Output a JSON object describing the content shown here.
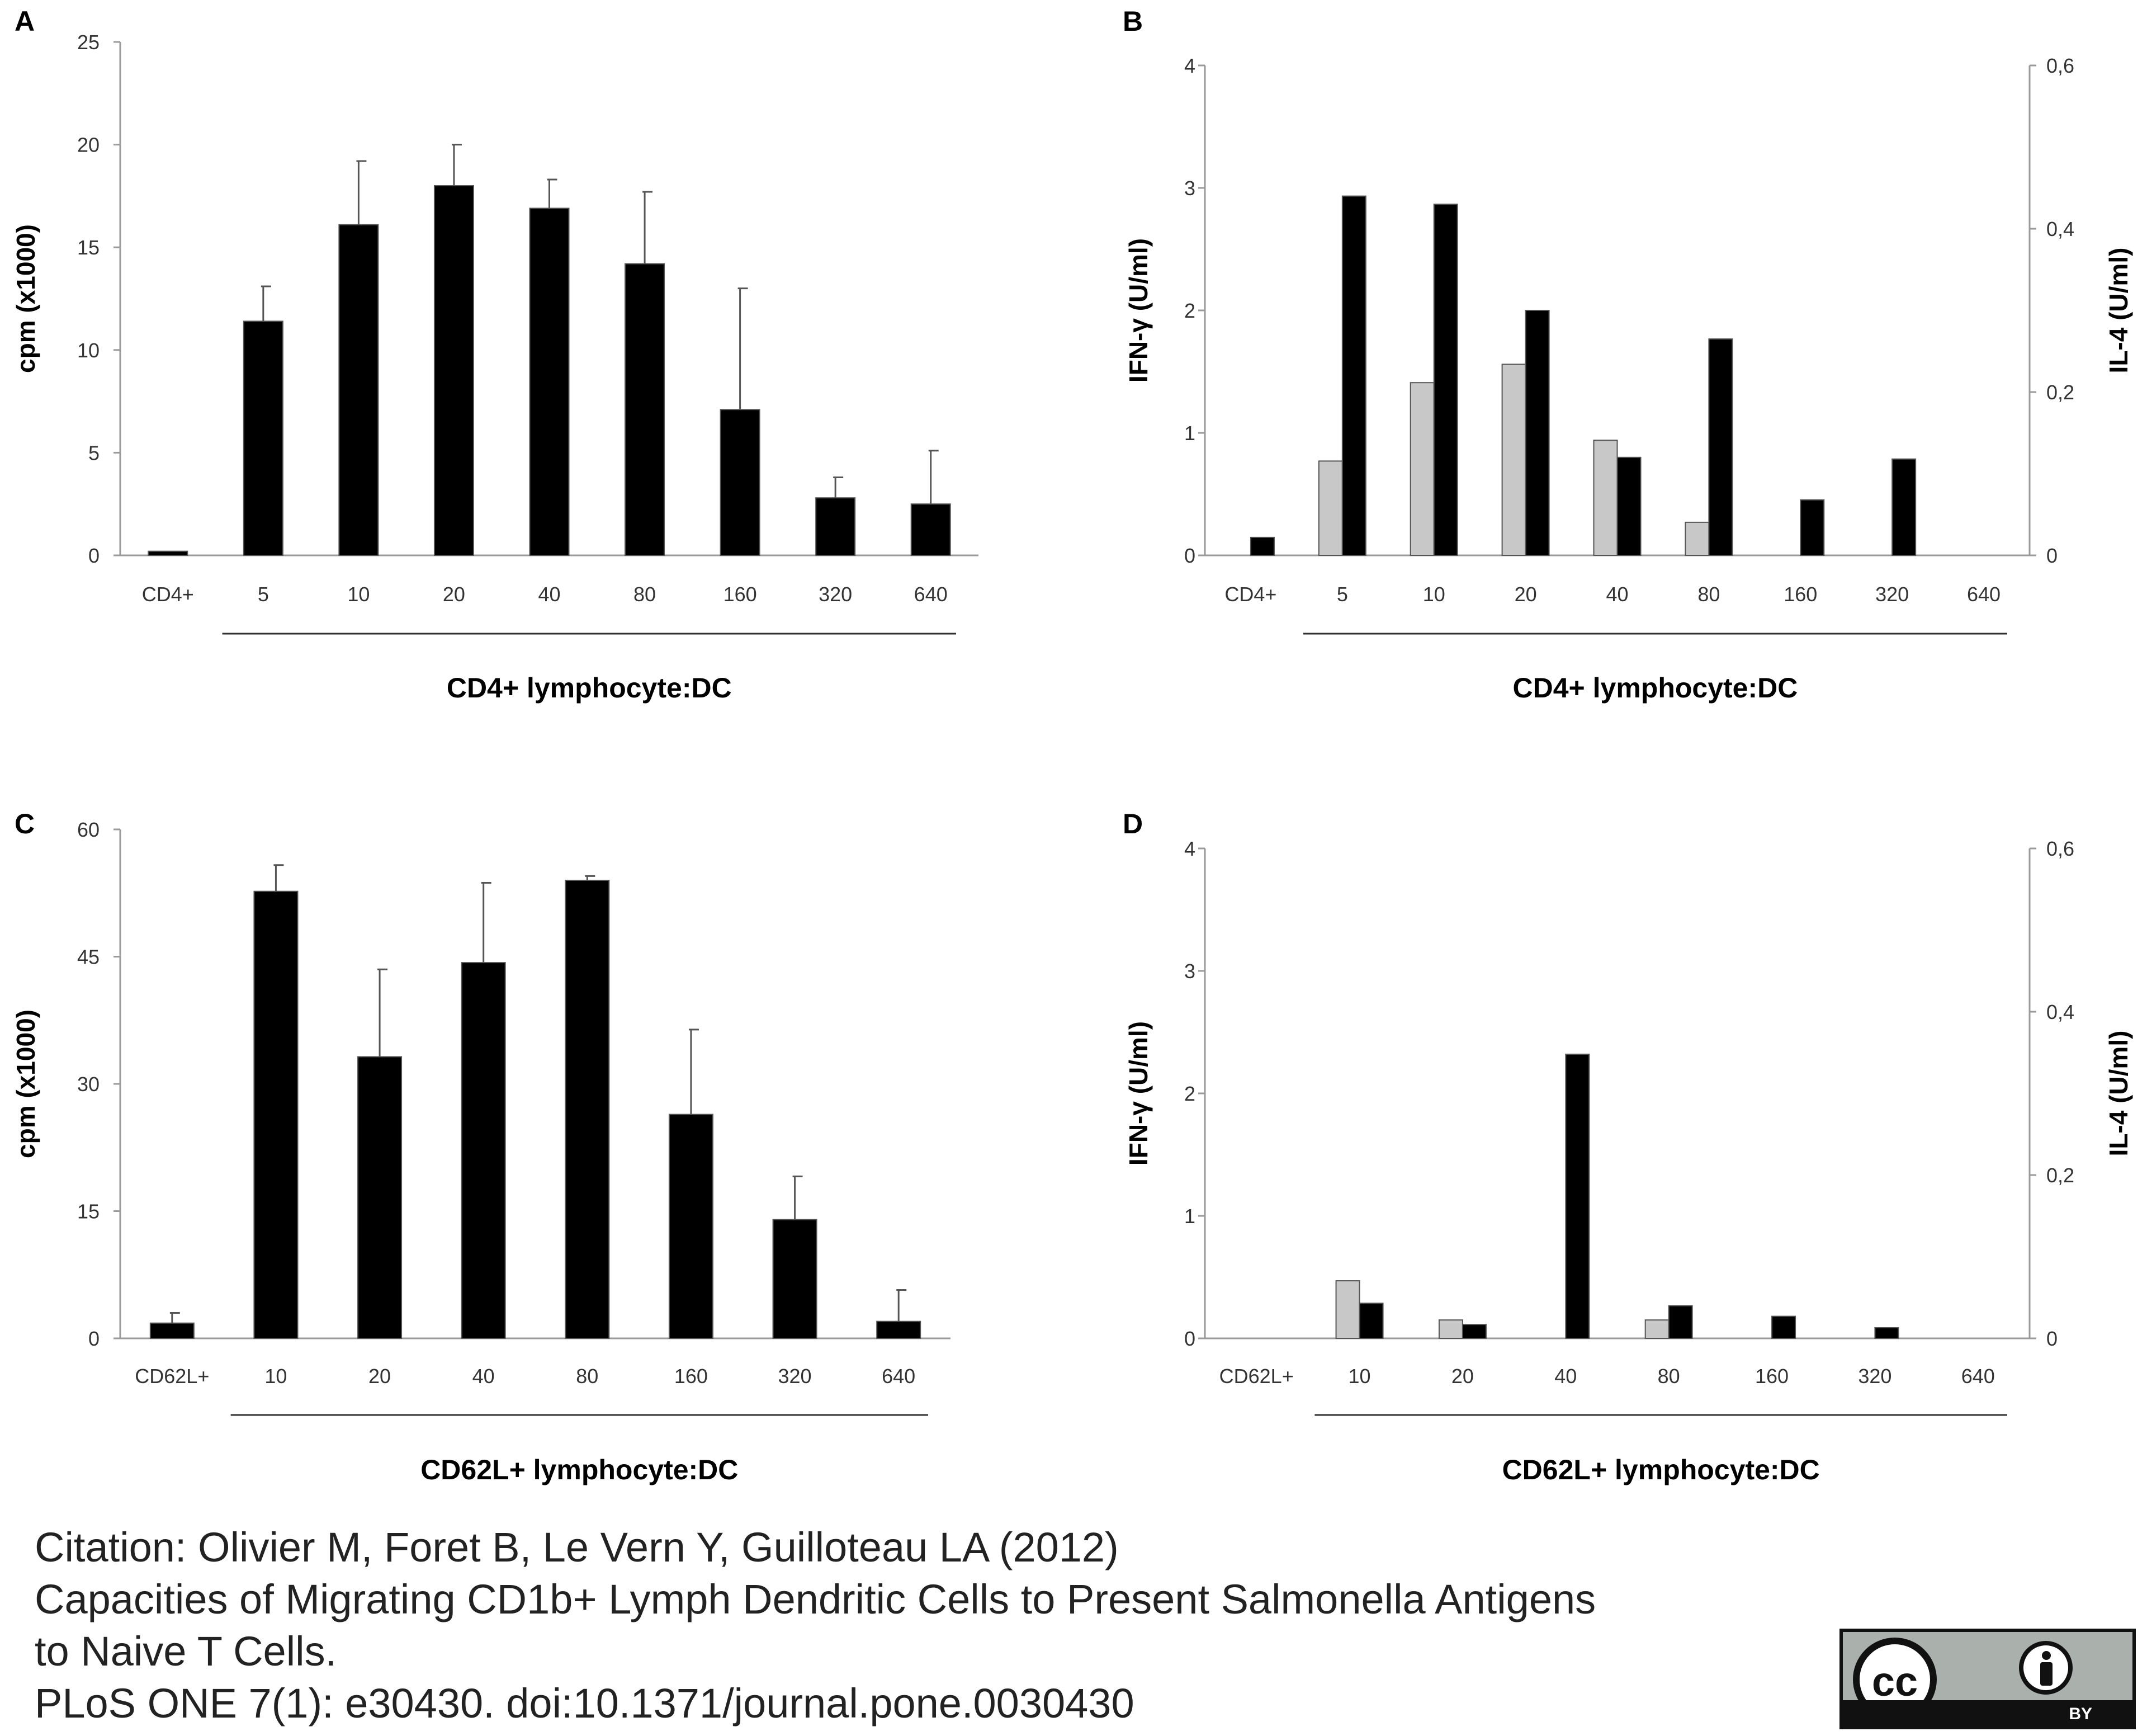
{
  "panels": [
    {
      "letter": "A",
      "type": "bar",
      "ylabel": "cpm (x1000)",
      "xlabel": "CD4+ lymphocyte:DC",
      "categories": [
        "CD4+",
        "5",
        "10",
        "20",
        "40",
        "80",
        "160",
        "320",
        "640"
      ],
      "yticks": [
        "0",
        "5",
        "10",
        "15",
        "20",
        "25"
      ],
      "ylim": [
        0,
        25
      ],
      "bracket_from": 1,
      "series": [
        {
          "values": [
            0.2,
            11.4,
            16.1,
            18.0,
            16.9,
            14.2,
            7.1,
            2.8,
            2.5
          ],
          "errors": [
            0,
            1.7,
            3.1,
            2.0,
            1.4,
            3.5,
            5.9,
            1.0,
            2.6
          ],
          "color": "#000000"
        }
      ]
    },
    {
      "letter": "B",
      "type": "bar",
      "ylabel": "IFN-γ (U/ml)",
      "y2label": "IL-4 (U/ml)",
      "xlabel": "CD4+ lymphocyte:DC",
      "categories": [
        "CD4+",
        "5",
        "10",
        "20",
        "40",
        "80",
        "160",
        "320",
        "640"
      ],
      "yticks": [
        "0",
        "1",
        "2",
        "3",
        "4"
      ],
      "y2ticks": [
        "0",
        "0,2",
        "0,4",
        "0,6"
      ],
      "ylim": [
        0,
        4
      ],
      "y2lim": [
        0,
        0.6
      ],
      "bracket_from": 1,
      "series": [
        {
          "values": [
            0,
            0.77,
            1.41,
            1.56,
            0.94,
            0.27,
            0,
            0,
            0
          ],
          "color": "#c8c8c8",
          "axis": "left"
        },
        {
          "values": [
            0.022,
            0.44,
            0.43,
            0.3,
            0.12,
            0.265,
            0.068,
            0.118,
            0
          ],
          "color": "#000000",
          "axis": "right"
        }
      ]
    },
    {
      "letter": "C",
      "type": "bar",
      "ylabel": "cpm (x1000)",
      "xlabel": "CD62L+ lymphocyte:DC",
      "categories": [
        "CD62L+",
        "10",
        "20",
        "40",
        "80",
        "160",
        "320",
        "640"
      ],
      "yticks": [
        "0",
        "15",
        "30",
        "45",
        "60"
      ],
      "ylim": [
        0,
        60
      ],
      "bracket_from": 1,
      "series": [
        {
          "values": [
            1.8,
            52.7,
            33.2,
            44.3,
            54.0,
            26.4,
            14.0,
            2.0
          ],
          "errors": [
            1.2,
            3.1,
            10.3,
            9.4,
            0.5,
            10.0,
            5.1,
            3.7
          ],
          "color": "#000000"
        }
      ]
    },
    {
      "letter": "D",
      "type": "bar",
      "ylabel": "IFN-γ (U/ml)",
      "y2label": "IL-4 (U/ml)",
      "xlabel": "CD62L+ lymphocyte:DC",
      "categories": [
        "CD62L+",
        "10",
        "20",
        "40",
        "80",
        "160",
        "320",
        "640"
      ],
      "yticks": [
        "0",
        "1",
        "2",
        "3",
        "4"
      ],
      "y2ticks": [
        "0",
        "0,2",
        "0,4",
        "0,6"
      ],
      "ylim": [
        0,
        4
      ],
      "y2lim": [
        0,
        0.6
      ],
      "bracket_from": 1,
      "series": [
        {
          "values": [
            0,
            0.47,
            0.15,
            0,
            0.15,
            0,
            0,
            0
          ],
          "color": "#c8c8c8",
          "axis": "left"
        },
        {
          "values": [
            0,
            0.043,
            0.017,
            0.348,
            0.04,
            0.027,
            0.013,
            0
          ],
          "color": "#000000",
          "axis": "right"
        }
      ]
    }
  ],
  "citation": [
    "Citation: Olivier M, Foret B, Le Vern Y, Guilloteau LA (2012)",
    "Capacities of Migrating CD1b+ Lymph Dendritic Cells to Present Salmonella Antigens",
    "to Naive T Cells.",
    "PLoS ONE 7(1): e30430. doi:10.1371/journal.pone.0030430"
  ],
  "license": {
    "badge_text": "cc",
    "by_text": "BY"
  }
}
